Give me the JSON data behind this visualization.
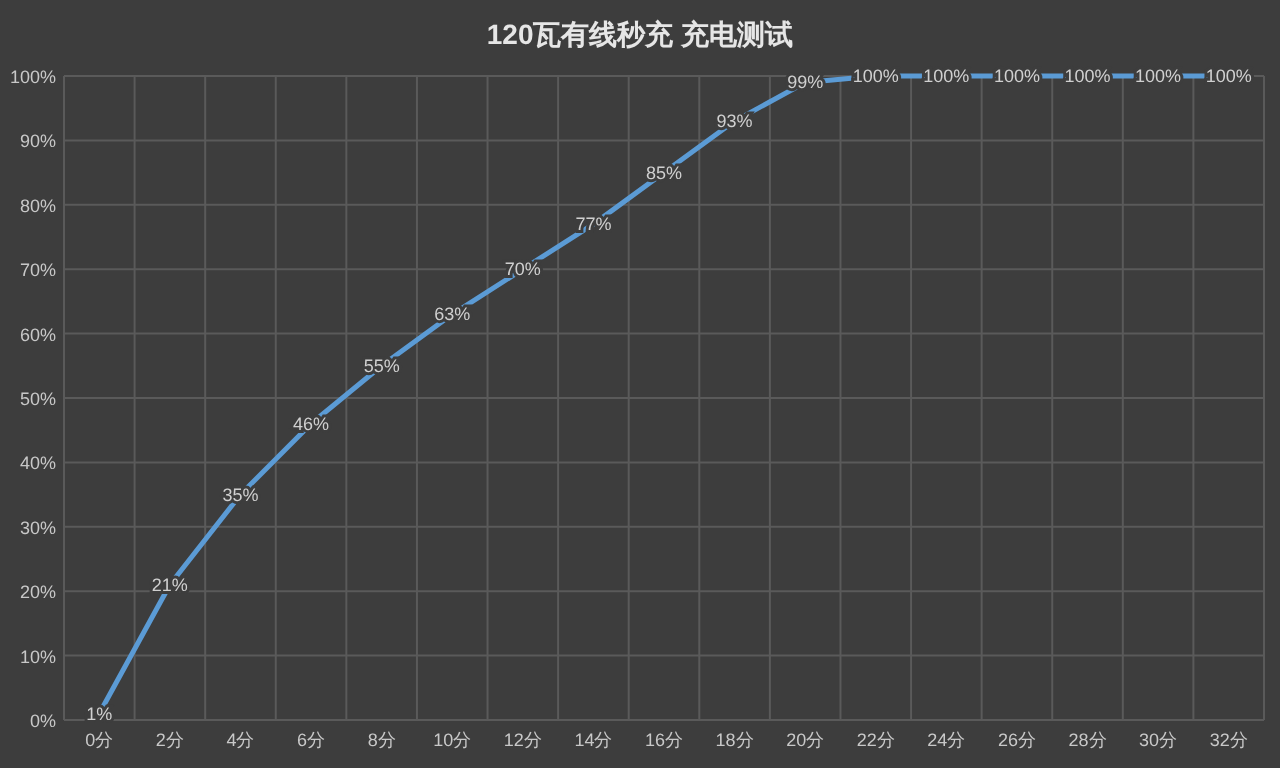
{
  "chart_data": {
    "type": "line",
    "title": "120瓦有线秒充 充电测试",
    "categories": [
      "0分",
      "2分",
      "4分",
      "6分",
      "8分",
      "10分",
      "12分",
      "14分",
      "16分",
      "18分",
      "20分",
      "22分",
      "24分",
      "26分",
      "28分",
      "30分",
      "32分"
    ],
    "series": [
      {
        "color": "#5b9bd5",
        "values": [
          1,
          21,
          35,
          46,
          55,
          63,
          70,
          77,
          85,
          93,
          99,
          100,
          100,
          100,
          100,
          100,
          100
        ],
        "value_labels": [
          "1%",
          "21%",
          "35%",
          "46%",
          "55%",
          "63%",
          "70%",
          "77%",
          "85%",
          "93%",
          "99%",
          "100%",
          "100%",
          "100%",
          "100%",
          "100%",
          "100%"
        ]
      }
    ],
    "ylim": [
      0,
      100
    ],
    "yticks": [
      {
        "value": 0,
        "label": "0%"
      },
      {
        "value": 10,
        "label": "10%"
      },
      {
        "value": 20,
        "label": "20%"
      },
      {
        "value": 30,
        "label": "30%"
      },
      {
        "value": 40,
        "label": "40%"
      },
      {
        "value": 50,
        "label": "50%"
      },
      {
        "value": 60,
        "label": "60%"
      },
      {
        "value": 70,
        "label": "70%"
      },
      {
        "value": 80,
        "label": "80%"
      },
      {
        "value": 90,
        "label": "90%"
      },
      {
        "value": 100,
        "label": "100%"
      }
    ],
    "grid": true,
    "marker": "none",
    "line_style": "solid"
  }
}
